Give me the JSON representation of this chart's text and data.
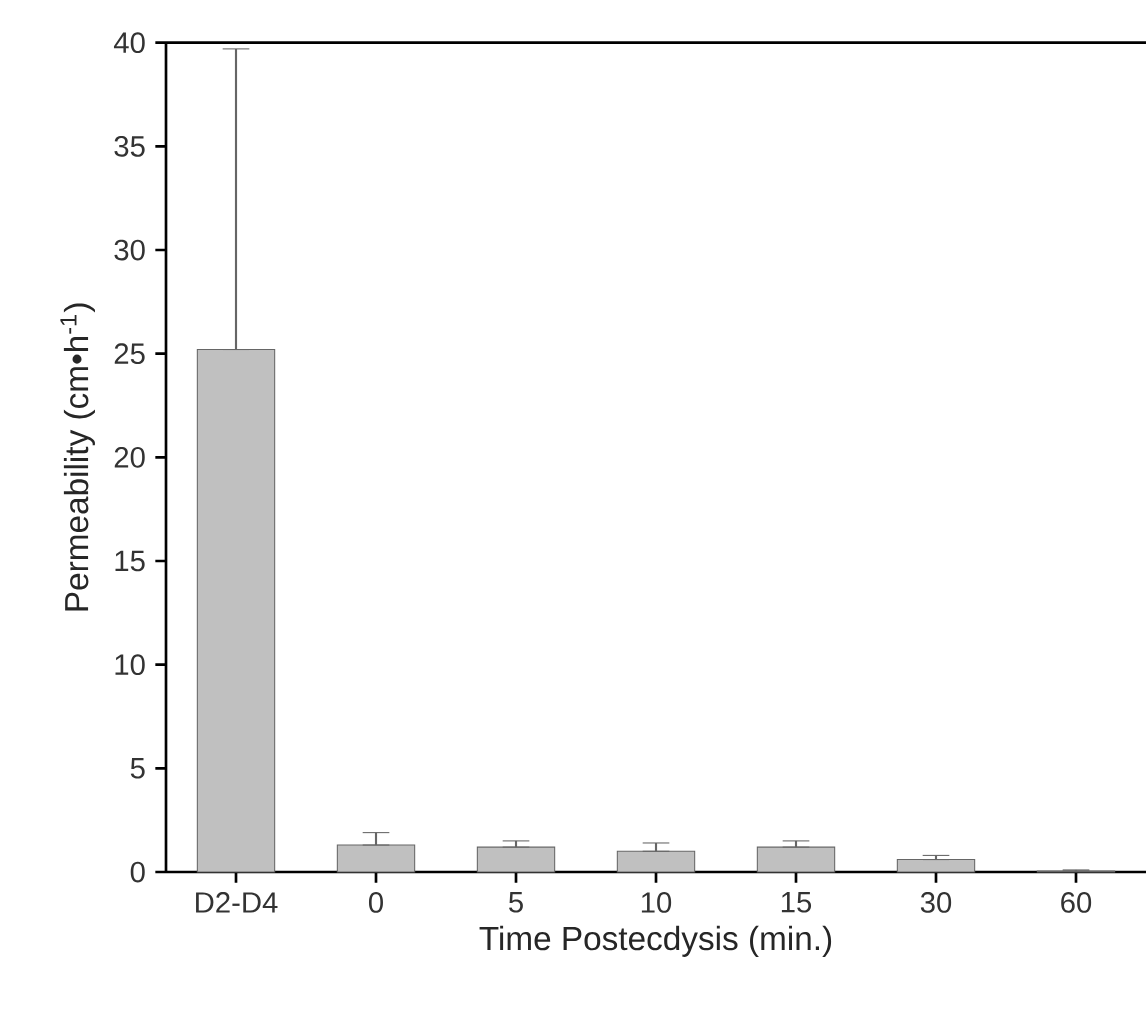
{
  "chart_data": {
    "type": "bar",
    "xlabel": "Time Postecdysis (min.)",
    "ylabel": "Permeability (cm•h$^{-1}$)",
    "categories": [
      "D2-D4",
      "0",
      "5",
      "10",
      "15",
      "30",
      "60"
    ],
    "values": [
      25.2,
      1.3,
      1.2,
      1.0,
      1.2,
      0.6,
      0.05
    ],
    "errors": [
      [
        25.2,
        39.7
      ],
      [
        1.3,
        1.9
      ],
      [
        1.2,
        1.5
      ],
      [
        1.0,
        1.4
      ],
      [
        1.2,
        1.5
      ],
      [
        0.6,
        0.8
      ],
      [
        0.05,
        0.1
      ]
    ],
    "color": "#c0c0c0",
    "ylim": [
      0,
      40
    ],
    "yticks": [
      0,
      5,
      10,
      15,
      20,
      25,
      30,
      35,
      40
    ],
    "grid": false
  }
}
